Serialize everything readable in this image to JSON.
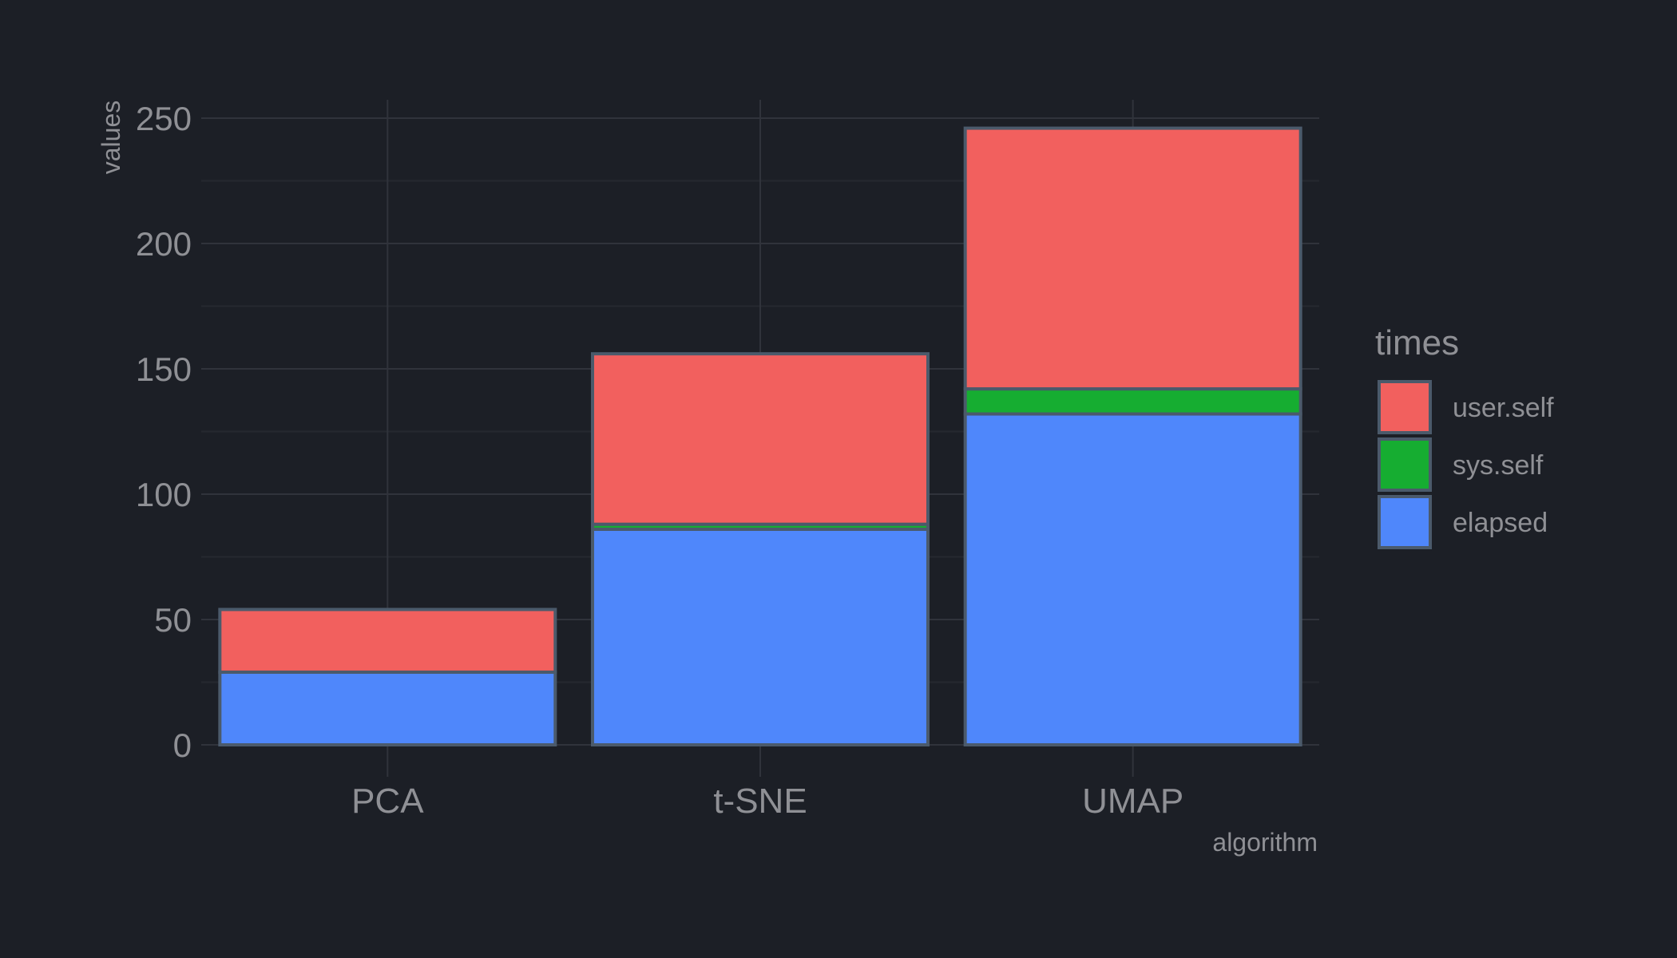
{
  "chart_data": {
    "type": "bar",
    "stacked": true,
    "categories": [
      "PCA",
      "t-SNE",
      "UMAP"
    ],
    "series": [
      {
        "name": "elapsed",
        "values": [
          29,
          86,
          132
        ],
        "color": "#4f87fb"
      },
      {
        "name": "sys.self",
        "values": [
          0,
          2,
          10
        ],
        "color": "#16ad31"
      },
      {
        "name": "user.self",
        "values": [
          25,
          68,
          104
        ],
        "color": "#f2605e"
      }
    ],
    "xlabel": "algorithm",
    "ylabel": "values",
    "ylim": [
      0,
      250
    ],
    "yticks": [
      0,
      50,
      100,
      150,
      200,
      250
    ],
    "grid": true,
    "legend": {
      "title": "times",
      "placement": "right",
      "order": [
        "user.self",
        "sys.self",
        "elapsed"
      ]
    },
    "colors": {
      "background": "#1c1f26",
      "grid_major": "#30333b",
      "grid_minor": "#262930",
      "bar_outline": "#4b5a6b",
      "text": "#8f9095"
    }
  }
}
